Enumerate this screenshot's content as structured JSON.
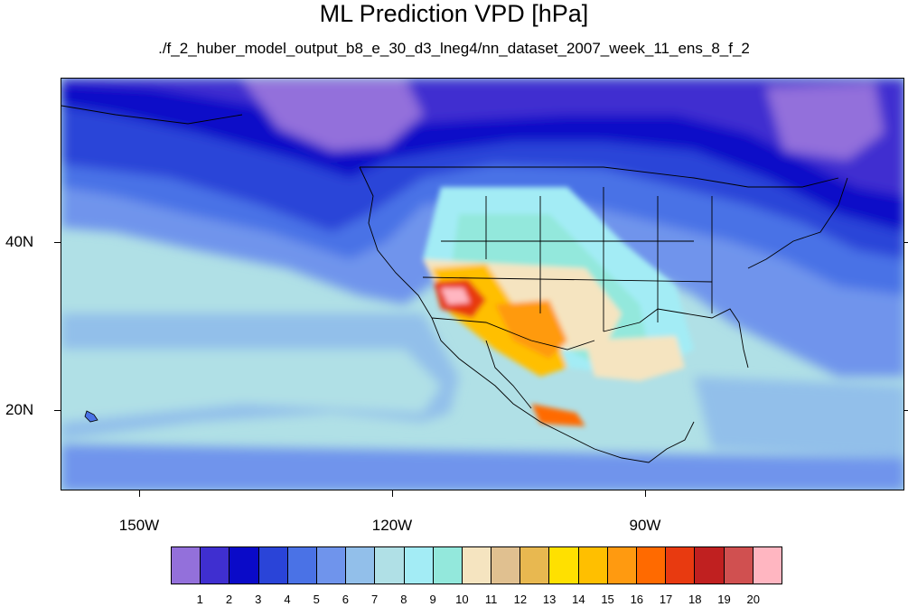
{
  "title": "ML Prediction VPD [hPa]",
  "subtitle": "./f_2_huber_model_output_b8_e_30_d3_lneg4/nn_dataset_2007_week_11_ens_8_f_2",
  "axes": {
    "lat_labels": [
      "40N",
      "20N"
    ],
    "lon_labels": [
      "150W",
      "120W",
      "90W"
    ]
  },
  "colorbar": {
    "labels": [
      "1",
      "2",
      "3",
      "4",
      "5",
      "6",
      "7",
      "8",
      "9",
      "10",
      "11",
      "12",
      "13",
      "14",
      "15",
      "16",
      "17",
      "18",
      "19",
      "20"
    ],
    "colors": [
      "#9370db",
      "#3f2fd0",
      "#0a0ac8",
      "#2a44d8",
      "#4a72e6",
      "#6f94ec",
      "#92bfea",
      "#b0e0e6",
      "#a3ecf5",
      "#93e8dc",
      "#f5e4c0",
      "#e0c090",
      "#e8b850",
      "#ffe000",
      "#ffbf00",
      "#ff9a10",
      "#ff6a00",
      "#e83a10",
      "#c02020",
      "#d05050",
      "#ffb6c1"
    ]
  },
  "colors": {
    "ocean_base": "#b0e0e6",
    "border": "#000000"
  }
}
